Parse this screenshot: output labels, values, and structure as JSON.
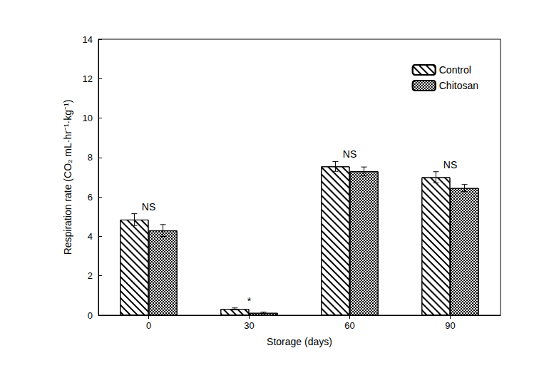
{
  "chart_data": {
    "type": "bar",
    "x_label": "Storage (days)",
    "y_label": "Respiration rate (CO₂ mL·hr⁻¹·kg⁻¹)",
    "categories": [
      "0",
      "30",
      "60",
      "90"
    ],
    "series": [
      {
        "name": "Control",
        "color": "#ffffff",
        "values": [
          4.85,
          0.32,
          7.55,
          7.0
        ],
        "errors": [
          0.3,
          0.05,
          0.25,
          0.28
        ]
      },
      {
        "name": "Chitosan",
        "color": "#ffffff",
        "values": [
          4.3,
          0.12,
          7.3,
          6.45
        ],
        "errors": [
          0.3,
          0.04,
          0.22,
          0.18
        ]
      }
    ],
    "annotations": [
      "NS",
      "*",
      "NS",
      "NS"
    ],
    "ylim": [
      0,
      14
    ],
    "yticks": [
      0,
      2,
      4,
      6,
      8,
      10,
      12,
      14
    ],
    "legend": "top-right",
    "grid": false
  }
}
